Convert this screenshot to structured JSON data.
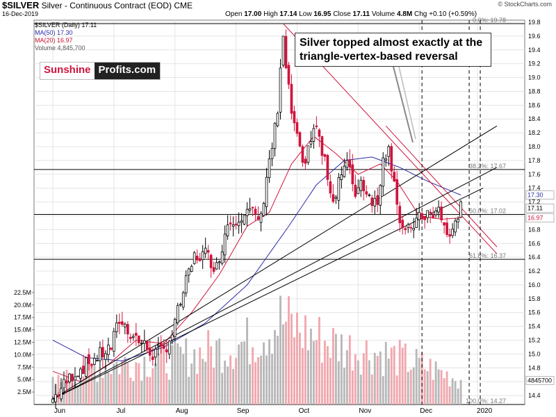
{
  "header": {
    "symbol": "$SILVER",
    "title": "Silver - Continuous Contract (EOD)",
    "exchange": "CME",
    "date": "16-Dec-2019",
    "open_label": "Open",
    "open": "17.00",
    "high_label": "High",
    "high": "17.14",
    "low_label": "Low",
    "low": "16.95",
    "close_label": "Close",
    "close": "17.11",
    "volume_label": "Volume",
    "volume": "4.8M",
    "chg_label": "Chg",
    "chg": "+0.10 (+0.59%)",
    "watermark": "© StockCharts.com"
  },
  "legend": {
    "main": "$SILVER (Daily) 17.11",
    "ma50": "MA(50) 17.30",
    "ma20": "MA(20) 16.97",
    "volume": "Volume 4,845,700"
  },
  "brand": {
    "part1": "Sunshine",
    "part2": "Profits.com"
  },
  "annotation": "Silver topped almost exactly at the triangle-vertex-based reversal",
  "colors": {
    "up": "#ffffff",
    "down": "#d0143c",
    "ma50": "#2a2aa8",
    "ma20": "#d0143c",
    "vol_up": "#b8b8b8",
    "vol_down": "#f0a8ae",
    "grid": "#e4e4e4"
  },
  "chart_data": {
    "type": "candlestick",
    "x_labels": [
      "Jun",
      "Jul",
      "Aug",
      "Sep",
      "Oct",
      "Nov",
      "Dec",
      "2020"
    ],
    "price_axis": [
      "19.8",
      "19.6",
      "19.4",
      "19.2",
      "19.0",
      "18.8",
      "18.6",
      "18.4",
      "18.2",
      "18.0",
      "17.8",
      "17.6",
      "17.4",
      "17.2",
      "17.0",
      "16.8",
      "16.6",
      "16.4",
      "16.2",
      "16.0",
      "15.8",
      "15.6",
      "15.4",
      "15.2",
      "15.0",
      "14.8",
      "14.6",
      "14.4"
    ],
    "ylim": [
      14.27,
      19.83
    ],
    "price_badges": [
      "17.30",
      "17.11",
      "16.97",
      "4845700"
    ],
    "volume_axis": [
      "22.5M",
      "20.0M",
      "17.5M",
      "15.0M",
      "12.5M",
      "10.0M",
      "7.5M",
      "5.0M",
      "2.5M"
    ],
    "volume_max": 25000000,
    "fib_levels": [
      {
        "label": "0.0%: 19.78",
        "value": 19.78
      },
      {
        "label": "38.2%: 17.67",
        "value": 17.67
      },
      {
        "label": "50.0%: 17.02",
        "value": 17.02
      },
      {
        "label": "61.8%: 16.37",
        "value": 16.37
      },
      {
        "label": "100.0%: 14.27",
        "value": 14.27
      }
    ],
    "close_keys": [
      [
        0,
        14.35
      ],
      [
        7,
        14.7
      ],
      [
        14,
        14.9
      ],
      [
        21,
        15.1
      ],
      [
        24,
        15.5
      ],
      [
        27,
        15.35
      ],
      [
        31,
        15.2
      ],
      [
        36,
        15.0
      ],
      [
        40,
        15.05
      ],
      [
        43,
        15.3
      ],
      [
        47,
        15.9
      ],
      [
        51,
        16.4
      ],
      [
        55,
        16.45
      ],
      [
        59,
        16.25
      ],
      [
        63,
        16.9
      ],
      [
        67,
        17.0
      ],
      [
        71,
        17.05
      ],
      [
        75,
        16.95
      ],
      [
        77,
        17.6
      ],
      [
        79,
        18.0
      ],
      [
        81,
        18.5
      ],
      [
        83,
        19.6
      ],
      [
        84,
        19.1
      ],
      [
        86,
        18.5
      ],
      [
        88,
        18.1
      ],
      [
        90,
        17.7
      ],
      [
        92,
        18.0
      ],
      [
        95,
        18.3
      ],
      [
        97,
        17.9
      ],
      [
        99,
        17.6
      ],
      [
        101,
        17.2
      ],
      [
        103,
        17.55
      ],
      [
        106,
        17.75
      ],
      [
        109,
        17.35
      ],
      [
        111,
        17.5
      ],
      [
        114,
        17.3
      ],
      [
        117,
        17.15
      ],
      [
        119,
        17.9
      ],
      [
        121,
        17.95
      ],
      [
        123,
        17.55
      ],
      [
        125,
        16.9
      ],
      [
        127,
        16.7
      ],
      [
        129,
        16.85
      ],
      [
        132,
        16.95
      ],
      [
        135,
        17.05
      ],
      [
        137,
        16.95
      ],
      [
        139,
        17.1
      ],
      [
        141,
        16.85
      ],
      [
        143,
        16.65
      ],
      [
        145,
        16.95
      ],
      [
        147,
        17.11
      ]
    ],
    "volume_keys": [
      [
        0,
        4000000
      ],
      [
        15,
        7500000
      ],
      [
        28,
        8500000
      ],
      [
        42,
        9000000
      ],
      [
        55,
        10500000
      ],
      [
        70,
        12500000
      ],
      [
        82,
        17000000
      ],
      [
        92,
        14000000
      ],
      [
        105,
        11500000
      ],
      [
        120,
        10000000
      ],
      [
        135,
        7500000
      ],
      [
        147,
        4845700
      ]
    ],
    "moving_averages": [
      {
        "name": "MA(50)",
        "keys": [
          [
            0,
            15.2
          ],
          [
            12,
            14.95
          ],
          [
            25,
            14.9
          ],
          [
            40,
            15.1
          ],
          [
            55,
            15.45
          ],
          [
            70,
            16.0
          ],
          [
            85,
            16.85
          ],
          [
            95,
            17.45
          ],
          [
            105,
            17.8
          ],
          [
            115,
            17.85
          ],
          [
            125,
            17.7
          ],
          [
            135,
            17.5
          ],
          [
            147,
            17.3
          ]
        ]
      },
      {
        "name": "MA(20)",
        "keys": [
          [
            0,
            14.75
          ],
          [
            10,
            14.6
          ],
          [
            20,
            14.85
          ],
          [
            30,
            15.2
          ],
          [
            40,
            15.15
          ],
          [
            50,
            15.6
          ],
          [
            60,
            16.15
          ],
          [
            70,
            16.85
          ],
          [
            78,
            17.05
          ],
          [
            86,
            17.75
          ],
          [
            94,
            18.15
          ],
          [
            102,
            17.9
          ],
          [
            110,
            17.6
          ],
          [
            118,
            17.75
          ],
          [
            124,
            17.5
          ],
          [
            132,
            17.0
          ],
          [
            140,
            16.95
          ],
          [
            147,
            16.97
          ]
        ]
      }
    ],
    "trend_lines": [
      {
        "from": [
          83,
          19.78
        ],
        "to": [
          160,
          16.45
        ]
      },
      {
        "from": [
          120,
          18.3
        ],
        "to": [
          160,
          16.55
        ]
      },
      {
        "from": [
          0,
          14.35
        ],
        "to": [
          160,
          18.3
        ]
      },
      {
        "from": [
          0,
          14.35
        ],
        "to": [
          160,
          17.7
        ]
      },
      {
        "from": [
          0,
          14.35
        ],
        "to": [
          155,
          17.4
        ]
      }
    ],
    "vertical_markers": [
      133,
      150,
      154
    ],
    "xlabel": "",
    "ylabel": ""
  }
}
